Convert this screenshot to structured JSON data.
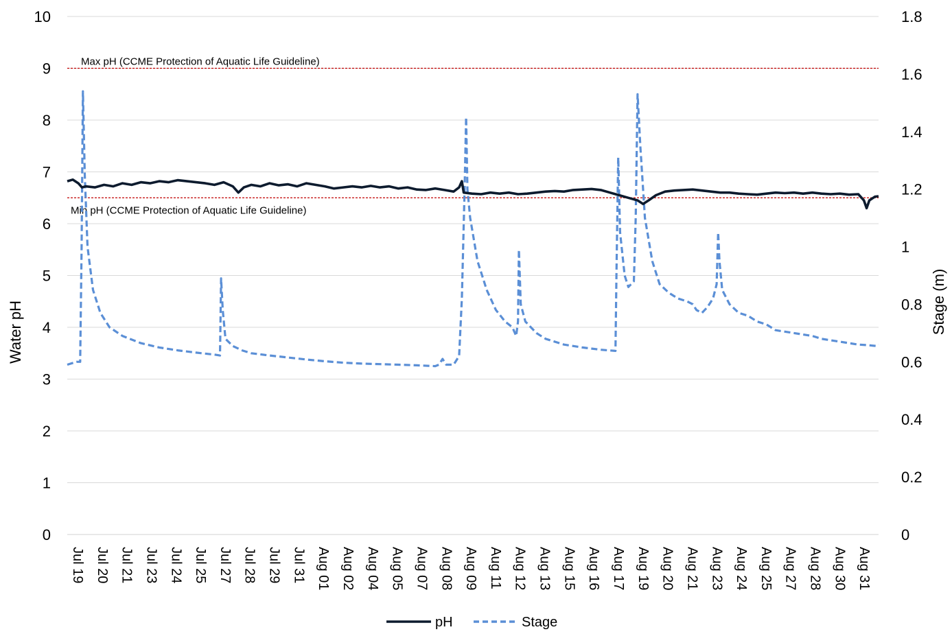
{
  "chart_data": {
    "type": "line",
    "title": "",
    "ylabel": "Water pH",
    "y2label": "Stage (m)",
    "ylim": [
      0,
      10
    ],
    "y2lim": [
      0,
      1.8
    ],
    "yticks": [
      "0",
      "1",
      "2",
      "3",
      "4",
      "5",
      "6",
      "7",
      "8",
      "9",
      "10"
    ],
    "y2ticks": [
      "0",
      "0.2",
      "0.4",
      "0.6",
      "0.8",
      "1",
      "1.2",
      "1.4",
      "1.6",
      "1.8"
    ],
    "grid": true,
    "legend_position": "bottom",
    "x_tick_labels": [
      "Jul 19",
      "Jul 20",
      "Jul 21",
      "Jul 23",
      "Jul 24",
      "Jul 25",
      "Jul 27",
      "Jul 28",
      "Jul 29",
      "Jul 31",
      "Aug 01",
      "Aug 02",
      "Aug 04",
      "Aug 05",
      "Aug 07",
      "Aug 08",
      "Aug 09",
      "Aug 11",
      "Aug 12",
      "Aug 13",
      "Aug 15",
      "Aug 16",
      "Aug 17",
      "Aug 19",
      "Aug 20",
      "Aug 21",
      "Aug 23",
      "Aug 24",
      "Aug 25",
      "Aug 27",
      "Aug 28",
      "Aug 30",
      "Aug 31"
    ],
    "guidelines": [
      {
        "label": "Max pH (CCME Protection of Aquatic Life Guideline)",
        "value": 9,
        "color": "#c00000"
      },
      {
        "label": "Min pH (CCME Protection of Aquatic Life Guideline)",
        "value": 6.5,
        "color": "#c00000"
      }
    ],
    "series": [
      {
        "name": "pH",
        "axis": "left",
        "color": "#0d1b2e",
        "style": "solid",
        "points": [
          [
            0,
            6.82
          ],
          [
            0.3,
            6.85
          ],
          [
            0.6,
            6.78
          ],
          [
            0.8,
            6.7
          ],
          [
            1.0,
            6.72
          ],
          [
            1.5,
            6.7
          ],
          [
            2.0,
            6.75
          ],
          [
            2.5,
            6.72
          ],
          [
            3.0,
            6.78
          ],
          [
            3.5,
            6.75
          ],
          [
            4.0,
            6.8
          ],
          [
            4.5,
            6.78
          ],
          [
            5.0,
            6.82
          ],
          [
            5.5,
            6.8
          ],
          [
            6.0,
            6.84
          ],
          [
            6.5,
            6.82
          ],
          [
            7.0,
            6.8
          ],
          [
            7.5,
            6.78
          ],
          [
            8.0,
            6.75
          ],
          [
            8.5,
            6.8
          ],
          [
            9.0,
            6.72
          ],
          [
            9.3,
            6.6
          ],
          [
            9.6,
            6.7
          ],
          [
            10.0,
            6.75
          ],
          [
            10.5,
            6.72
          ],
          [
            11.0,
            6.78
          ],
          [
            11.5,
            6.74
          ],
          [
            12.0,
            6.76
          ],
          [
            12.5,
            6.72
          ],
          [
            13.0,
            6.78
          ],
          [
            13.5,
            6.75
          ],
          [
            14.0,
            6.72
          ],
          [
            14.5,
            6.68
          ],
          [
            15.0,
            6.7
          ],
          [
            15.5,
            6.72
          ],
          [
            16.0,
            6.7
          ],
          [
            16.5,
            6.73
          ],
          [
            17.0,
            6.7
          ],
          [
            17.5,
            6.72
          ],
          [
            18.0,
            6.68
          ],
          [
            18.5,
            6.7
          ],
          [
            19.0,
            6.66
          ],
          [
            19.5,
            6.65
          ],
          [
            20.0,
            6.68
          ],
          [
            20.5,
            6.65
          ],
          [
            21.0,
            6.62
          ],
          [
            21.3,
            6.7
          ],
          [
            21.45,
            6.82
          ],
          [
            21.55,
            6.6
          ],
          [
            22.0,
            6.58
          ],
          [
            22.5,
            6.57
          ],
          [
            23.0,
            6.6
          ],
          [
            23.5,
            6.58
          ],
          [
            24.0,
            6.6
          ],
          [
            24.5,
            6.57
          ],
          [
            25.0,
            6.58
          ],
          [
            25.5,
            6.6
          ],
          [
            26.0,
            6.62
          ],
          [
            26.5,
            6.63
          ],
          [
            27.0,
            6.62
          ],
          [
            27.5,
            6.65
          ],
          [
            28.0,
            6.66
          ],
          [
            28.5,
            6.67
          ],
          [
            29.0,
            6.65
          ],
          [
            29.5,
            6.6
          ],
          [
            30.0,
            6.55
          ],
          [
            30.5,
            6.5
          ],
          [
            31.0,
            6.45
          ],
          [
            31.3,
            6.38
          ],
          [
            31.6,
            6.45
          ],
          [
            32.0,
            6.55
          ],
          [
            32.5,
            6.62
          ],
          [
            33.0,
            6.64
          ],
          [
            33.5,
            6.65
          ],
          [
            34.0,
            6.66
          ],
          [
            34.5,
            6.64
          ],
          [
            35.0,
            6.62
          ],
          [
            35.5,
            6.6
          ],
          [
            36.0,
            6.6
          ],
          [
            36.5,
            6.58
          ],
          [
            37.0,
            6.57
          ],
          [
            37.5,
            6.56
          ],
          [
            38.0,
            6.58
          ],
          [
            38.5,
            6.6
          ],
          [
            39.0,
            6.59
          ],
          [
            39.5,
            6.6
          ],
          [
            40.0,
            6.58
          ],
          [
            40.5,
            6.6
          ],
          [
            41.0,
            6.58
          ],
          [
            41.5,
            6.57
          ],
          [
            42.0,
            6.58
          ],
          [
            42.5,
            6.56
          ],
          [
            43.0,
            6.57
          ],
          [
            43.3,
            6.45
          ],
          [
            43.45,
            6.3
          ],
          [
            43.6,
            6.45
          ],
          [
            43.9,
            6.52
          ],
          [
            44.1,
            6.53
          ]
        ]
      },
      {
        "name": "Stage",
        "axis": "right",
        "color": "#5b8fd6",
        "style": "dashed",
        "points": [
          [
            0,
            0.59
          ],
          [
            0.5,
            0.6
          ],
          [
            0.7,
            0.6
          ],
          [
            0.78,
            1.0
          ],
          [
            0.85,
            1.54
          ],
          [
            0.95,
            1.25
          ],
          [
            1.1,
            1.0
          ],
          [
            1.4,
            0.85
          ],
          [
            1.8,
            0.77
          ],
          [
            2.3,
            0.72
          ],
          [
            3.0,
            0.69
          ],
          [
            4.0,
            0.665
          ],
          [
            5.0,
            0.65
          ],
          [
            6.0,
            0.64
          ],
          [
            7.0,
            0.632
          ],
          [
            8.0,
            0.625
          ],
          [
            8.3,
            0.622
          ],
          [
            8.32,
            0.7
          ],
          [
            8.36,
            0.89
          ],
          [
            8.45,
            0.78
          ],
          [
            8.6,
            0.68
          ],
          [
            9.0,
            0.655
          ],
          [
            9.5,
            0.64
          ],
          [
            10.0,
            0.63
          ],
          [
            11.0,
            0.622
          ],
          [
            12.0,
            0.615
          ],
          [
            13.0,
            0.608
          ],
          [
            14.0,
            0.602
          ],
          [
            15.0,
            0.597
          ],
          [
            16.0,
            0.594
          ],
          [
            17.0,
            0.592
          ],
          [
            18.0,
            0.59
          ],
          [
            19.0,
            0.588
          ],
          [
            20.0,
            0.585
          ],
          [
            20.2,
            0.59
          ],
          [
            20.4,
            0.61
          ],
          [
            20.6,
            0.59
          ],
          [
            21.0,
            0.59
          ],
          [
            21.3,
            0.62
          ],
          [
            21.45,
            0.82
          ],
          [
            21.6,
            1.2
          ],
          [
            21.68,
            1.45
          ],
          [
            21.75,
            1.2
          ],
          [
            21.9,
            1.1
          ],
          [
            22.3,
            0.95
          ],
          [
            22.8,
            0.85
          ],
          [
            23.3,
            0.78
          ],
          [
            23.8,
            0.74
          ],
          [
            24.2,
            0.72
          ],
          [
            24.4,
            0.69
          ],
          [
            24.5,
            0.74
          ],
          [
            24.55,
            0.99
          ],
          [
            24.65,
            0.8
          ],
          [
            24.9,
            0.74
          ],
          [
            25.5,
            0.7
          ],
          [
            26.0,
            0.68
          ],
          [
            27.0,
            0.66
          ],
          [
            28.0,
            0.65
          ],
          [
            29.0,
            0.642
          ],
          [
            29.8,
            0.638
          ],
          [
            29.85,
            0.9
          ],
          [
            29.95,
            1.31
          ],
          [
            30.05,
            1.05
          ],
          [
            30.3,
            0.9
          ],
          [
            30.5,
            0.86
          ],
          [
            30.8,
            0.88
          ],
          [
            30.9,
            1.1
          ],
          [
            31.0,
            1.53
          ],
          [
            31.15,
            1.35
          ],
          [
            31.4,
            1.1
          ],
          [
            31.8,
            0.95
          ],
          [
            32.2,
            0.87
          ],
          [
            32.7,
            0.84
          ],
          [
            33.2,
            0.82
          ],
          [
            33.7,
            0.81
          ],
          [
            34.0,
            0.8
          ],
          [
            34.2,
            0.78
          ],
          [
            34.5,
            0.77
          ],
          [
            34.8,
            0.79
          ],
          [
            35.1,
            0.82
          ],
          [
            35.3,
            0.87
          ],
          [
            35.38,
            1.05
          ],
          [
            35.45,
            0.95
          ],
          [
            35.6,
            0.85
          ],
          [
            36.0,
            0.8
          ],
          [
            36.5,
            0.77
          ],
          [
            37.0,
            0.76
          ],
          [
            37.5,
            0.74
          ],
          [
            38.0,
            0.73
          ],
          [
            38.5,
            0.71
          ],
          [
            39.0,
            0.705
          ],
          [
            39.5,
            0.7
          ],
          [
            40.0,
            0.695
          ],
          [
            40.5,
            0.69
          ],
          [
            41.0,
            0.68
          ],
          [
            41.5,
            0.675
          ],
          [
            42.0,
            0.67
          ],
          [
            42.5,
            0.665
          ],
          [
            43.0,
            0.66
          ],
          [
            43.5,
            0.658
          ],
          [
            44.0,
            0.655
          ],
          [
            44.1,
            0.66
          ]
        ]
      }
    ]
  }
}
